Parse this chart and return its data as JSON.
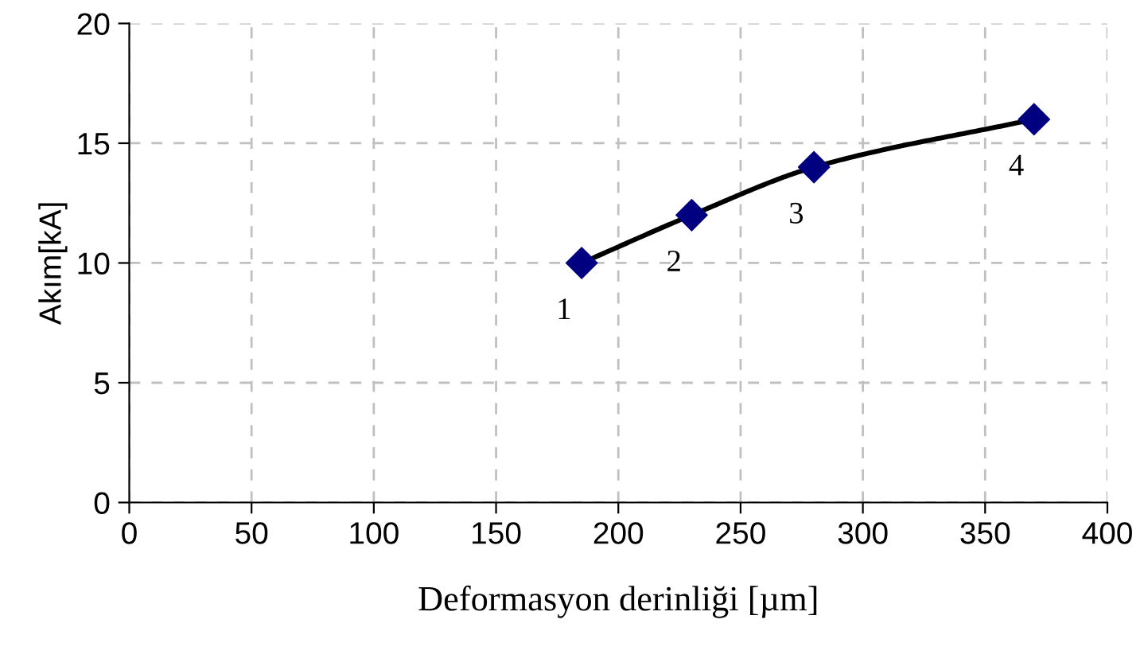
{
  "chart_data": {
    "type": "line",
    "xlabel": "Deformasyon derinliği [µm]",
    "ylabel": "Akım[kA]",
    "x": [
      185,
      230,
      280,
      370
    ],
    "series": [
      {
        "color": "#000000",
        "colors": [
          "#000080",
          "#000080",
          "#000080",
          "#000080"
        ],
        "values": [
          10,
          12,
          14,
          16
        ]
      }
    ],
    "xlim": [
      0,
      400
    ],
    "xticks": [
      0,
      50,
      100,
      150,
      200,
      250,
      300,
      350,
      400
    ],
    "ylim": [
      0,
      20
    ],
    "yticks": [
      0,
      5,
      10,
      15,
      20
    ],
    "grid": true,
    "marker": "diamond",
    "line_style": "solid",
    "annotations": [
      {
        "text": "1",
        "x": 185,
        "y": 10
      },
      {
        "text": "2",
        "x": 230,
        "y": 12
      },
      {
        "text": "3",
        "x": 280,
        "y": 14
      },
      {
        "text": "4",
        "x": 370,
        "y": 16
      }
    ]
  }
}
